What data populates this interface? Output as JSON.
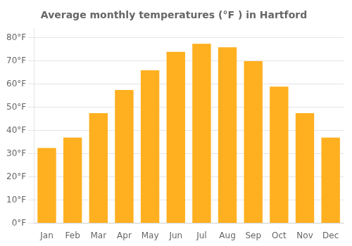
{
  "chart_data": {
    "type": "bar",
    "title": "Average monthly temperatures (°F ) in Hartford",
    "categories": [
      "Jan",
      "Feb",
      "Mar",
      "Apr",
      "May",
      "Jun",
      "Jul",
      "Aug",
      "Sep",
      "Oct",
      "Nov",
      "Dec"
    ],
    "values": [
      32.5,
      37.0,
      47.5,
      57.5,
      66.0,
      74.0,
      77.5,
      76.0,
      70.0,
      59.0,
      47.5,
      37.0
    ],
    "color": "#FFB020",
    "ylim": [
      0,
      84
    ],
    "yticks": [
      {
        "value": 0,
        "label": "0°F"
      },
      {
        "value": 10,
        "label": "10°F"
      },
      {
        "value": 20,
        "label": "20°F"
      },
      {
        "value": 30,
        "label": "30°F"
      },
      {
        "value": 40,
        "label": "40°F"
      },
      {
        "value": 50,
        "label": "50°F"
      },
      {
        "value": 60,
        "label": "60°F"
      },
      {
        "value": 70,
        "label": "70°F"
      },
      {
        "value": 80,
        "label": "80°F"
      }
    ],
    "grid": true
  }
}
